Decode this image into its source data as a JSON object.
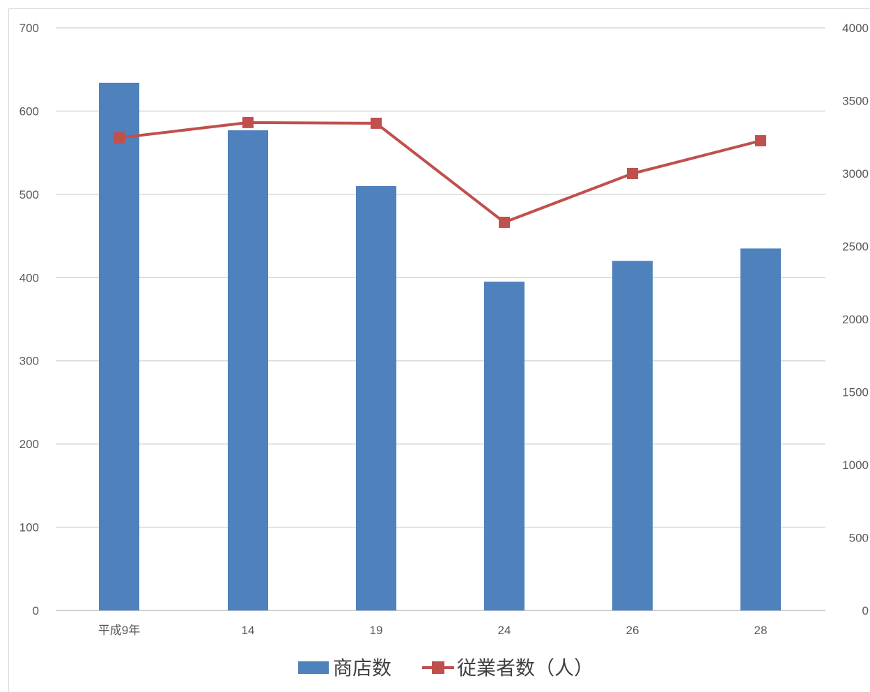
{
  "chart_data": {
    "type": "bar",
    "categories": [
      "平成9年",
      "14",
      "19",
      "24",
      "26",
      "28"
    ],
    "series": [
      {
        "name": "商店数",
        "type": "bar",
        "axis": "left",
        "color": "#4f81bd",
        "values": [
          634,
          577,
          510,
          395,
          420,
          435
        ]
      },
      {
        "name": "従業者数（人）",
        "type": "line",
        "axis": "right",
        "color": "#c0504d",
        "values": [
          3245,
          3350,
          3345,
          2665,
          3000,
          3225
        ]
      }
    ],
    "y_left": {
      "ylim": [
        0,
        700
      ],
      "ticks": [
        "0",
        "100",
        "200",
        "300",
        "400",
        "500",
        "600",
        "700"
      ]
    },
    "y_right": {
      "ylim": [
        0,
        4000
      ],
      "ticks": [
        "0",
        "500",
        "1000",
        "1500",
        "2000",
        "2500",
        "3000",
        "3500",
        "4000"
      ]
    },
    "grid": true,
    "legend": "bottom"
  }
}
